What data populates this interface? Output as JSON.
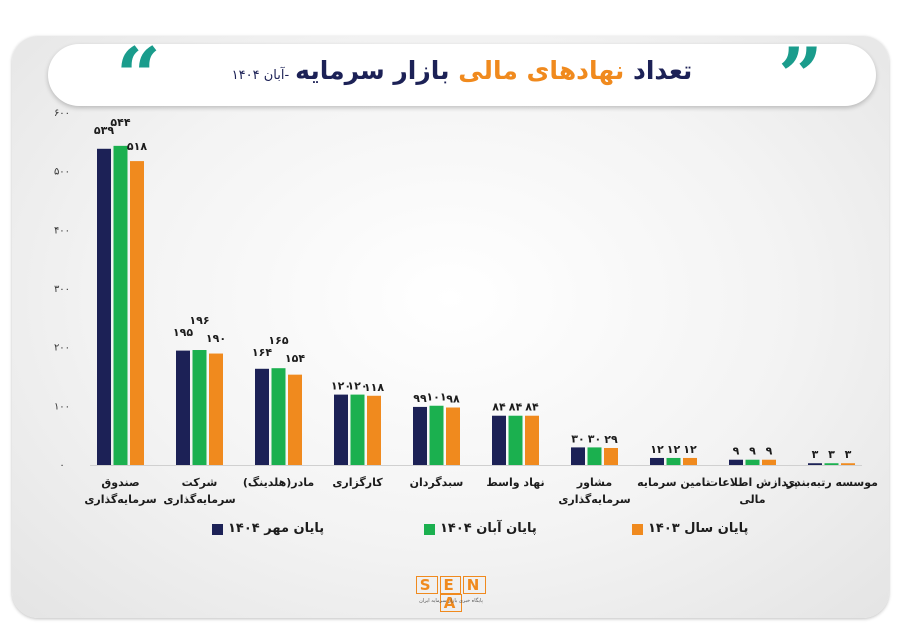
{
  "title": {
    "part1": "تعداد",
    "highlight": "نهادهای مالی",
    "part2": "بازار سرمایه",
    "date": "-آبان ۱۴۰۴"
  },
  "logo": {
    "letters": [
      "S",
      "E",
      "N",
      "A"
    ],
    "subtitle": "پایگاه خبری بازار سرمایه ایران"
  },
  "colors": {
    "navy": "#1c2156",
    "green": "#1bb04f",
    "orange": "#f08a1e",
    "quote": "#1a9c8c"
  },
  "chart_data": {
    "type": "bar",
    "ylim": [
      0,
      600
    ],
    "yticks": [
      "۰",
      "۱۰۰",
      "۲۰۰",
      "۳۰۰",
      "۴۰۰",
      "۵۰۰",
      "۶۰۰"
    ],
    "ytick_values": [
      0,
      100,
      200,
      300,
      400,
      500,
      600
    ],
    "categories": [
      [
        "صندوق",
        "سرمایه‌گذاری"
      ],
      [
        "شرکت",
        "سرمایه‌گذاری"
      ],
      [
        "مادر(هلدینگ)"
      ],
      [
        "کارگزاری"
      ],
      [
        "سبدگردان"
      ],
      [
        "نهاد واسط"
      ],
      [
        "مشاور",
        "سرمایه‌گذاری"
      ],
      [
        "تامین سرمایه"
      ],
      [
        "پردازش اطلاعات",
        "مالی"
      ],
      [
        "موسسه رتبه‌بندی"
      ]
    ],
    "series": [
      {
        "name": "پایان مهر ۱۴۰۴",
        "color": "#1c2156",
        "values": [
          539,
          195,
          164,
          120,
          99,
          84,
          30,
          12,
          9,
          3
        ],
        "labels": [
          "۵۳۹",
          "۱۹۵",
          "۱۶۴",
          "۱۲۰",
          "۹۹",
          "۸۴",
          "۳۰",
          "۱۲",
          "۹",
          "۳"
        ]
      },
      {
        "name": "پایان آبان ۱۴۰۴",
        "color": "#1bb04f",
        "values": [
          544,
          196,
          165,
          120,
          101,
          84,
          30,
          12,
          9,
          3
        ],
        "labels": [
          "۵۴۴",
          "۱۹۶",
          "۱۶۵",
          "۱۲۰",
          "۱۰۱",
          "۸۴",
          "۳۰",
          "۱۲",
          "۹",
          "۳"
        ]
      },
      {
        "name": "پایان سال ۱۴۰۳",
        "color": "#f08a1e",
        "values": [
          518,
          190,
          154,
          118,
          98,
          84,
          29,
          12,
          9,
          3
        ],
        "labels": [
          "۵۱۸",
          "۱۹۰",
          "۱۵۴",
          "۱۱۸",
          "۹۸",
          "۸۴",
          "۲۹",
          "۱۲",
          "۹",
          "۳"
        ]
      }
    ],
    "legend_position": "bottom",
    "grid": false
  }
}
